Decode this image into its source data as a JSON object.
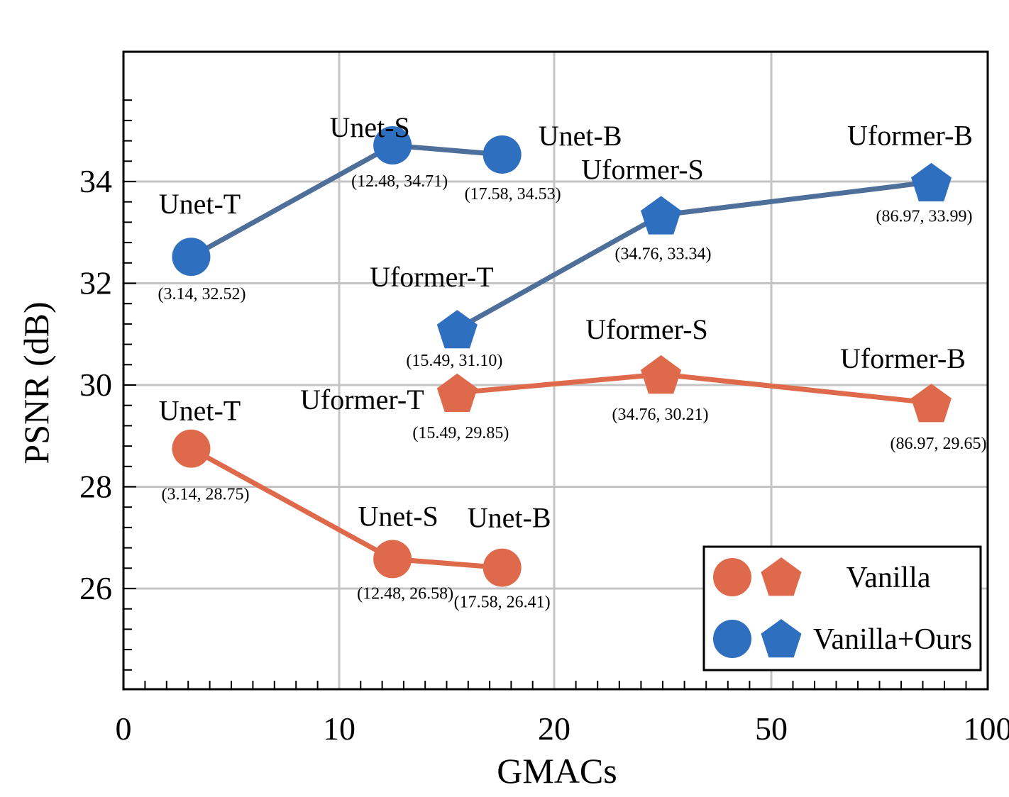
{
  "chart_data": {
    "type": "line",
    "xlabel": "GMACs",
    "ylabel": "PSNR (dB)",
    "x_tick_labels": [
      "0",
      "10",
      "20",
      "50",
      "100"
    ],
    "x_scale": "piecewise",
    "x_breaks": [
      0,
      10,
      20,
      50,
      100
    ],
    "y_tick_labels": [
      "26",
      "28",
      "30",
      "32",
      "34"
    ],
    "y_ticks": [
      26,
      28,
      30,
      32,
      34
    ],
    "ylim": [
      24.2,
      36.1
    ],
    "grid": true,
    "legend_position": "bottom-right",
    "colors": {
      "vanilla": "#df6a4b",
      "ours": "#2f6fc0",
      "vanilla_line": "#df6a4b",
      "ours_line": "#4d6f9a"
    },
    "series": [
      {
        "name": "Vanilla",
        "marker_group": "Unet",
        "marker": "circle",
        "color": "#df6a4b",
        "points": [
          {
            "x": 3.14,
            "y": 28.75,
            "model": "Unet-T",
            "coord": "(3.14, 28.75)"
          },
          {
            "x": 12.48,
            "y": 26.58,
            "model": "Unet-S",
            "coord": "(12.48, 26.58)"
          },
          {
            "x": 17.58,
            "y": 26.41,
            "model": "Unet-B",
            "coord": "(17.58, 26.41)"
          }
        ]
      },
      {
        "name": "Vanilla",
        "marker_group": "Uformer",
        "marker": "pentagon",
        "color": "#df6a4b",
        "points": [
          {
            "x": 15.49,
            "y": 29.85,
            "model": "Uformer-T",
            "coord": "(15.49, 29.85)"
          },
          {
            "x": 34.76,
            "y": 30.21,
            "model": "Uformer-S",
            "coord": "(34.76, 30.21)"
          },
          {
            "x": 86.97,
            "y": 29.65,
            "model": "Uformer-B",
            "coord": "(86.97, 29.65)"
          }
        ]
      },
      {
        "name": "Vanilla+Ours",
        "marker_group": "Unet",
        "marker": "circle",
        "color": "#2f6fc0",
        "points": [
          {
            "x": 3.14,
            "y": 32.52,
            "model": "Unet-T",
            "coord": "(3.14, 32.52)"
          },
          {
            "x": 12.48,
            "y": 34.71,
            "model": "Unet-S",
            "coord": "(12.48, 34.71)"
          },
          {
            "x": 17.58,
            "y": 34.53,
            "model": "Unet-B",
            "coord": "(17.58, 34.53)"
          }
        ]
      },
      {
        "name": "Vanilla+Ours",
        "marker_group": "Uformer",
        "marker": "pentagon",
        "color": "#2f6fc0",
        "points": [
          {
            "x": 15.49,
            "y": 31.1,
            "model": "Uformer-T",
            "coord": "(15.49, 31.10)"
          },
          {
            "x": 34.76,
            "y": 33.34,
            "model": "Uformer-S",
            "coord": "(34.76, 33.34)"
          },
          {
            "x": 86.97,
            "y": 33.99,
            "model": "Uformer-B",
            "coord": "(86.97, 33.99)"
          }
        ]
      }
    ],
    "legend": [
      {
        "label": "Vanilla",
        "color": "#df6a4b",
        "markers": [
          "circle",
          "pentagon"
        ]
      },
      {
        "label": "Vanilla+Ours",
        "color": "#2f6fc0",
        "markers": [
          "circle",
          "pentagon"
        ]
      }
    ]
  }
}
